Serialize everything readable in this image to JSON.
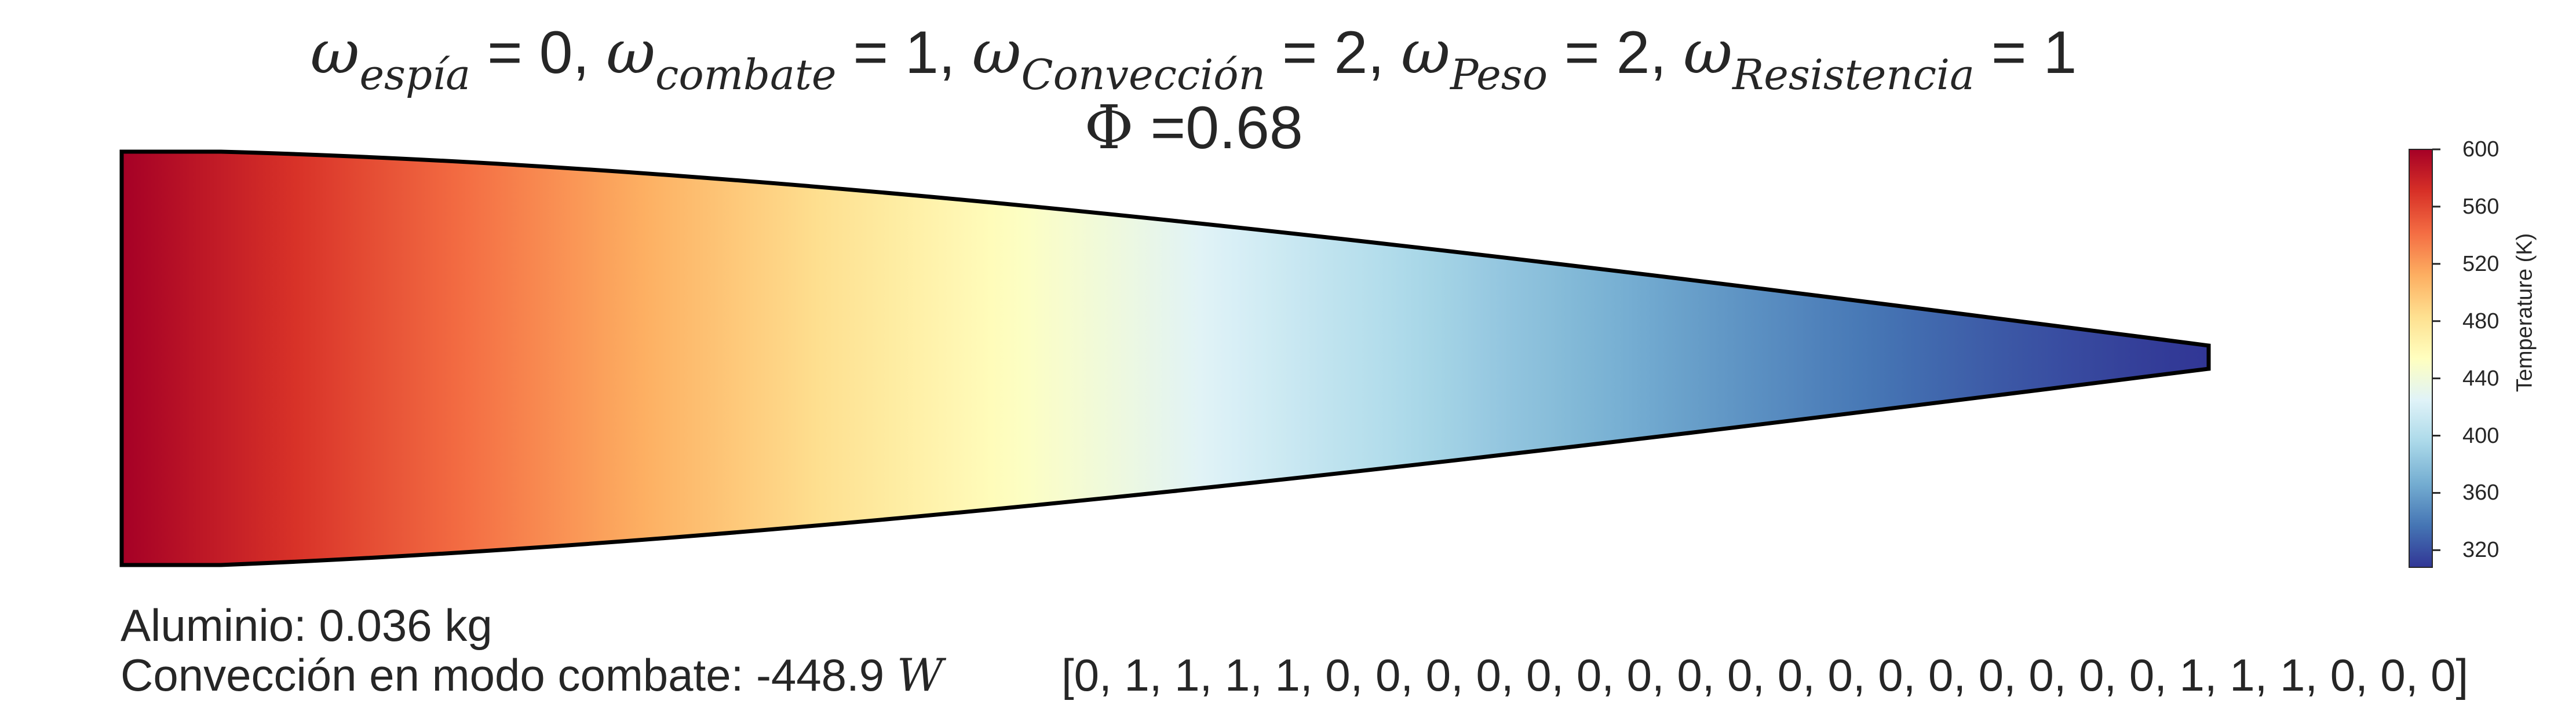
{
  "title": {
    "line1": {
      "symbol": "ω",
      "terms": [
        {
          "sub": "espía",
          "value": "0"
        },
        {
          "sub": "combate",
          "value": "1"
        },
        {
          "sub": "Convección",
          "value": "2"
        },
        {
          "sub": "Peso",
          "value": "2"
        },
        {
          "sub": "Resistencia",
          "value": "1"
        }
      ]
    },
    "phi_symbol": "Φ",
    "phi_text": " =0.68"
  },
  "colorbar": {
    "label": "Temperature (K)",
    "ticks": [
      "600",
      "560",
      "520",
      "480",
      "440",
      "400",
      "360",
      "320"
    ],
    "min": 308,
    "max": 600,
    "colormap": "RdYlBu_r",
    "colors": [
      "#a50026",
      "#d73027",
      "#f46d43",
      "#fdae61",
      "#fee090",
      "#ffffbf",
      "#e0f3f8",
      "#abd9e9",
      "#74add1",
      "#4575b4",
      "#313695"
    ]
  },
  "fin": {
    "temperature_root": 600,
    "temperature_tip": 308,
    "outline_color": "#000000"
  },
  "info": {
    "material": "Aluminio: 0.036 kg",
    "convection_text": "Convección en modo combate: -448.9 ",
    "convection_unit": "W",
    "configuration": "[0, 1, 1, 1, 1, 0, 0, 0, 0, 0, 0, 0, 0, 0, 0, 0, 0, 0, 0, 0, 0, 0, 1, 1, 1, 0, 0, 0]"
  }
}
